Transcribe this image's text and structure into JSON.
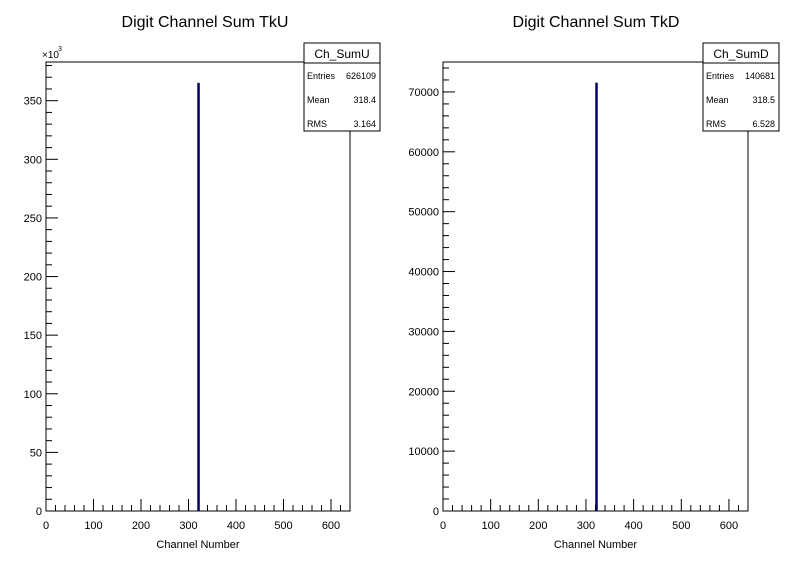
{
  "chart_data": [
    {
      "type": "bar",
      "title": "Digit Channel Sum TkU",
      "xlabel": "Channel Number",
      "ylabel": "",
      "x_tick_labels": [
        "0",
        "100",
        "200",
        "300",
        "400",
        "500",
        "600"
      ],
      "y_tick_labels": [
        "0",
        "50",
        "100",
        "150",
        "200",
        "250",
        "300",
        "350"
      ],
      "y_multiplier_base": "×10",
      "y_multiplier_exp": "3",
      "xlim": [
        0,
        640
      ],
      "ylim": [
        0,
        383000
      ],
      "bins": [
        {
          "x": 319,
          "value": 365000
        }
      ],
      "bar_color": "#000066",
      "stats": {
        "name": "Ch_SumU",
        "rows": [
          {
            "label": "Entries",
            "value": "626109"
          },
          {
            "label": "Mean",
            "value": "318.4"
          },
          {
            "label": "RMS",
            "value": "3.164"
          }
        ]
      }
    },
    {
      "type": "bar",
      "title": "Digit Channel Sum TkD",
      "xlabel": "Channel Number",
      "ylabel": "",
      "x_tick_labels": [
        "0",
        "100",
        "200",
        "300",
        "400",
        "500",
        "600"
      ],
      "y_tick_labels": [
        "0",
        "10000",
        "20000",
        "30000",
        "40000",
        "50000",
        "60000",
        "70000"
      ],
      "y_multiplier_base": "",
      "y_multiplier_exp": "",
      "xlim": [
        0,
        640
      ],
      "ylim": [
        0,
        75000
      ],
      "bins": [
        {
          "x": 320,
          "value": 71500
        }
      ],
      "bar_color": "#000066",
      "stats": {
        "name": "Ch_SumD",
        "rows": [
          {
            "label": "Entries",
            "value": "140681"
          },
          {
            "label": "Mean",
            "value": "318.5"
          },
          {
            "label": "RMS",
            "value": "6.528"
          }
        ]
      }
    }
  ]
}
